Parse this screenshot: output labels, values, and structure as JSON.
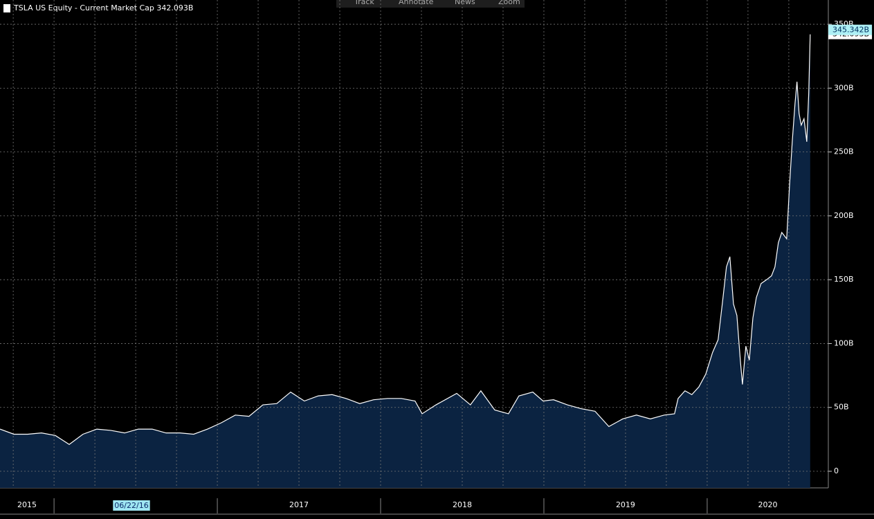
{
  "toolbar": [
    "Track",
    "Annotate",
    "News",
    "Zoom"
  ],
  "chart_data": {
    "type": "area",
    "title": "TSLA US Equity - Current Market Cap 342.093B",
    "cursor_date": "06/22/16",
    "xlim": [
      2015.669,
      2020.742
    ],
    "xticks": [
      2015,
      2017,
      2018,
      2019,
      2020
    ],
    "xgrid": [
      2015.75,
      2016,
      2016.25,
      2016.5,
      2016.75,
      2017,
      2017.25,
      2017.5,
      2017.75,
      2018,
      2018.25,
      2018.5,
      2018.75,
      2019,
      2019.25,
      2019.5,
      2019.75,
      2020,
      2020.25,
      2020.5
    ],
    "ylim": [
      -13,
      369
    ],
    "yticks": [
      0,
      {
        "value": 50,
        "label": "50B"
      },
      {
        "value": 100,
        "label": "100B"
      },
      {
        "value": 150,
        "label": "150B"
      },
      {
        "value": 200,
        "label": "200B"
      },
      {
        "value": 250,
        "label": "250B"
      },
      {
        "value": 300,
        "label": "300B"
      },
      {
        "value": 350,
        "label": "350B"
      }
    ],
    "grid": true,
    "last_value": 342.093,
    "last_value_label": "342.093B",
    "high_value": 345.342,
    "high_value_label": "345.342B",
    "series": [
      {
        "name": "TSLA US Equity",
        "color": "#ffffff",
        "fill": "#0b2341",
        "x": [
          2015.669,
          2015.754,
          2015.838,
          2015.923,
          2016.008,
          2016.093,
          2016.177,
          2016.262,
          2016.347,
          2016.432,
          2016.516,
          2016.601,
          2016.686,
          2016.771,
          2016.855,
          2016.94,
          2017.025,
          2017.11,
          2017.194,
          2017.279,
          2017.364,
          2017.449,
          2017.533,
          2017.618,
          2017.703,
          2017.788,
          2017.872,
          2017.957,
          2018.042,
          2018.127,
          2018.211,
          2018.254,
          2018.339,
          2018.466,
          2018.55,
          2018.614,
          2018.699,
          2018.783,
          2018.847,
          2018.932,
          2018.995,
          2019.059,
          2019.144,
          2019.228,
          2019.313,
          2019.398,
          2019.483,
          2019.567,
          2019.652,
          2019.737,
          2019.8,
          2019.822,
          2019.864,
          2019.906,
          2019.949,
          2019.991,
          2020.033,
          2020.067,
          2020.097,
          2020.118,
          2020.139,
          2020.161,
          2020.182,
          2020.203,
          2020.216,
          2020.237,
          2020.258,
          2020.28,
          2020.301,
          2020.33,
          2020.364,
          2020.394,
          2020.415,
          2020.436,
          2020.457,
          2020.487,
          2020.504,
          2020.521,
          2020.538,
          2020.55,
          2020.563,
          2020.576,
          2020.593,
          2020.61,
          2020.622,
          2020.631
        ],
        "values": [
          33,
          29,
          29,
          30,
          28,
          21,
          29,
          33,
          32,
          30,
          33,
          33,
          30,
          30,
          29,
          33,
          38,
          44,
          43,
          52,
          53,
          62,
          55,
          59,
          60,
          57,
          53,
          56,
          57,
          57,
          55,
          45,
          52,
          61,
          52,
          63,
          48,
          45,
          59,
          62,
          55,
          56,
          52,
          49,
          47,
          35,
          41,
          44,
          41,
          44,
          45,
          57,
          63,
          60,
          66,
          76,
          93,
          103,
          136,
          160,
          168,
          131,
          122,
          87,
          68,
          98,
          87,
          120,
          136,
          147,
          150,
          153,
          160,
          179,
          187,
          182,
          223,
          258,
          288,
          305,
          280,
          271,
          276,
          258,
          296,
          342.093
        ]
      }
    ]
  }
}
